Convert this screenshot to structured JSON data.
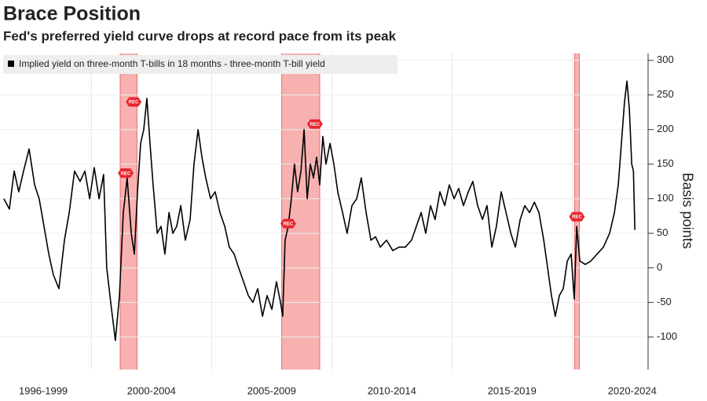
{
  "chart_data": {
    "type": "line",
    "title": "Brace Position",
    "subtitle": "Fed's preferred yield curve drops at record pace from its peak",
    "y_axis_label": "Basis points",
    "xlim": [
      1996.2,
      2023.16
    ],
    "xticks": [
      {
        "value": 1998,
        "label": "1996-1999"
      },
      {
        "value": 2002.5,
        "label": "2000-2004"
      },
      {
        "value": 2007.5,
        "label": "2005-2009"
      },
      {
        "value": 2012.5,
        "label": "2010-2014"
      },
      {
        "value": 2017.5,
        "label": "2015-2019"
      },
      {
        "value": 2022.5,
        "label": "2020-2024"
      }
    ],
    "xgrid": [
      2000,
      2005,
      2010,
      2015,
      2020
    ],
    "ylim": [
      -147,
      310
    ],
    "yticks": [
      -100,
      -50,
      0,
      50,
      100,
      150,
      200,
      250,
      300
    ],
    "grid": true,
    "recessions": [
      [
        2001.2,
        2001.9
      ],
      [
        2007.92,
        2009.5
      ],
      [
        2020.1,
        2020.3
      ]
    ],
    "recession_label": "REC",
    "recession_markers": [
      {
        "x": 2001.43,
        "y": 137
      },
      {
        "x": 2001.76,
        "y": 240
      },
      {
        "x": 2008.19,
        "y": 64
      },
      {
        "x": 2009.3,
        "y": 208
      },
      {
        "x": 2020.2,
        "y": 74
      }
    ],
    "x": [
      1996.36,
      1996.59,
      1996.79,
      1996.98,
      1997.18,
      1997.41,
      1997.64,
      1997.83,
      1998.03,
      1998.23,
      1998.42,
      1998.65,
      1998.88,
      1999.08,
      1999.3,
      1999.53,
      1999.73,
      1999.93,
      2000.12,
      2000.32,
      2000.51,
      2000.64,
      2000.84,
      2001.0,
      2001.17,
      2001.33,
      2001.49,
      2001.66,
      2001.79,
      2001.92,
      2002.05,
      2002.18,
      2002.31,
      2002.44,
      2002.57,
      2002.74,
      2002.9,
      2003.06,
      2003.23,
      2003.39,
      2003.55,
      2003.72,
      2003.91,
      2004.11,
      2004.27,
      2004.44,
      2004.6,
      2004.76,
      2004.96,
      2005.15,
      2005.35,
      2005.55,
      2005.74,
      2005.94,
      2006.13,
      2006.33,
      2006.53,
      2006.72,
      2006.92,
      2007.12,
      2007.31,
      2007.51,
      2007.7,
      2007.87,
      2007.96,
      2008.06,
      2008.19,
      2008.32,
      2008.45,
      2008.58,
      2008.72,
      2008.85,
      2008.98,
      2009.11,
      2009.24,
      2009.37,
      2009.5,
      2009.63,
      2009.76,
      2009.93,
      2010.09,
      2010.25,
      2010.45,
      2010.64,
      2010.84,
      2011.04,
      2011.23,
      2011.43,
      2011.63,
      2011.82,
      2012.02,
      2012.28,
      2012.54,
      2012.8,
      2013.06,
      2013.32,
      2013.52,
      2013.72,
      2013.91,
      2014.11,
      2014.3,
      2014.5,
      2014.7,
      2014.89,
      2015.09,
      2015.28,
      2015.48,
      2015.68,
      2015.87,
      2016.07,
      2016.27,
      2016.46,
      2016.66,
      2016.85,
      2017.05,
      2017.25,
      2017.45,
      2017.64,
      2017.84,
      2018.03,
      2018.23,
      2018.43,
      2018.62,
      2018.82,
      2018.98,
      2019.14,
      2019.3,
      2019.47,
      2019.63,
      2019.8,
      2019.96,
      2020.09,
      2020.19,
      2020.32,
      2020.55,
      2020.78,
      2021.04,
      2021.3,
      2021.56,
      2021.76,
      2021.92,
      2022.05,
      2022.18,
      2022.28,
      2022.38,
      2022.48,
      2022.55,
      2022.61
    ],
    "series": [
      {
        "name": "Implied yield on three-month T-bills in 18 months - three-month T-bill yield",
        "color": "#000000",
        "values": [
          100,
          85,
          140,
          110,
          140,
          172,
          120,
          100,
          60,
          20,
          -10,
          -30,
          40,
          80,
          140,
          125,
          140,
          100,
          145,
          100,
          135,
          0,
          -60,
          -105,
          -40,
          80,
          130,
          50,
          20,
          110,
          180,
          200,
          245,
          180,
          120,
          50,
          60,
          20,
          80,
          50,
          60,
          90,
          40,
          70,
          150,
          200,
          160,
          130,
          100,
          110,
          80,
          60,
          30,
          20,
          0,
          -20,
          -40,
          -50,
          -30,
          -70,
          -40,
          -60,
          -20,
          -50,
          -70,
          40,
          60,
          100,
          150,
          110,
          140,
          200,
          100,
          150,
          130,
          160,
          120,
          190,
          150,
          180,
          150,
          110,
          80,
          50,
          90,
          100,
          130,
          80,
          40,
          45,
          30,
          40,
          25,
          30,
          30,
          40,
          60,
          80,
          50,
          90,
          70,
          110,
          90,
          120,
          100,
          115,
          90,
          110,
          125,
          90,
          70,
          90,
          30,
          60,
          110,
          80,
          50,
          30,
          70,
          90,
          80,
          95,
          80,
          40,
          0,
          -40,
          -70,
          -40,
          -30,
          10,
          20,
          -45,
          60,
          10,
          5,
          10,
          20,
          30,
          50,
          80,
          120,
          180,
          240,
          270,
          230,
          150,
          140,
          55
        ]
      }
    ]
  }
}
